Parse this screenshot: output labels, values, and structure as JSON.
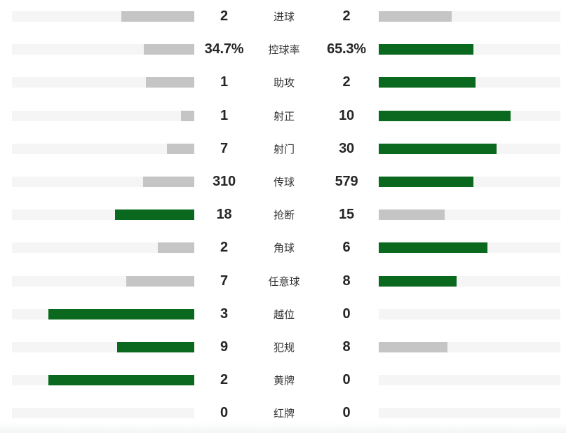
{
  "colors": {
    "win_bar": "#0a691e",
    "lose_bar": "#c5c5c5",
    "bar_track": "#f5f5f5",
    "value_text": "#262626",
    "label_text": "#333333"
  },
  "stats": [
    {
      "label": "进球",
      "home": {
        "display": "2",
        "value": 2
      },
      "away": {
        "display": "2",
        "value": 2
      }
    },
    {
      "label": "控球率",
      "home": {
        "display": "34.7%",
        "value": 34.7
      },
      "away": {
        "display": "65.3%",
        "value": 65.3
      }
    },
    {
      "label": "助攻",
      "home": {
        "display": "1",
        "value": 1
      },
      "away": {
        "display": "2",
        "value": 2
      }
    },
    {
      "label": "射正",
      "home": {
        "display": "1",
        "value": 1
      },
      "away": {
        "display": "10",
        "value": 10
      }
    },
    {
      "label": "射门",
      "home": {
        "display": "7",
        "value": 7
      },
      "away": {
        "display": "30",
        "value": 30
      }
    },
    {
      "label": "传球",
      "home": {
        "display": "310",
        "value": 310
      },
      "away": {
        "display": "579",
        "value": 579
      }
    },
    {
      "label": "抢断",
      "home": {
        "display": "18",
        "value": 18
      },
      "away": {
        "display": "15",
        "value": 15
      }
    },
    {
      "label": "角球",
      "home": {
        "display": "2",
        "value": 2
      },
      "away": {
        "display": "6",
        "value": 6
      }
    },
    {
      "label": "任意球",
      "home": {
        "display": "7",
        "value": 7
      },
      "away": {
        "display": "8",
        "value": 8
      }
    },
    {
      "label": "越位",
      "home": {
        "display": "3",
        "value": 3
      },
      "away": {
        "display": "0",
        "value": 0
      }
    },
    {
      "label": "犯规",
      "home": {
        "display": "9",
        "value": 9
      },
      "away": {
        "display": "8",
        "value": 8
      }
    },
    {
      "label": "黄牌",
      "home": {
        "display": "2",
        "value": 2
      },
      "away": {
        "display": "0",
        "value": 0
      }
    },
    {
      "label": "红牌",
      "home": {
        "display": "0",
        "value": 0
      },
      "away": {
        "display": "0",
        "value": 0
      }
    }
  ],
  "chart_data": {
    "type": "bar",
    "orientation": "horizontal-mirrored",
    "categories": [
      "进球",
      "控球率",
      "助攻",
      "射正",
      "射门",
      "传球",
      "抢断",
      "角球",
      "任意球",
      "越位",
      "犯规",
      "黄牌",
      "红牌"
    ],
    "series": [
      {
        "name": "home",
        "values": [
          2,
          34.7,
          1,
          1,
          7,
          310,
          18,
          2,
          7,
          3,
          9,
          2,
          0
        ],
        "labels": [
          "2",
          "34.7%",
          "1",
          "1",
          "7",
          "310",
          "18",
          "2",
          "7",
          "3",
          "9",
          "2",
          "0"
        ]
      },
      {
        "name": "away",
        "values": [
          2,
          65.3,
          2,
          10,
          30,
          579,
          15,
          6,
          8,
          0,
          8,
          0,
          0
        ],
        "labels": [
          "2",
          "65.3%",
          "2",
          "10",
          "30",
          "579",
          "15",
          "6",
          "8",
          "0",
          "8",
          "0",
          "0"
        ]
      }
    ],
    "bar_fill_rule": "fill width % = 80 * value / (home + away); empty when sum is 0",
    "highlight_rule": "bar of the larger value is green (#0a691e), smaller or tied value is gray (#c5c5c5)",
    "legend": "none",
    "grid": false
  }
}
